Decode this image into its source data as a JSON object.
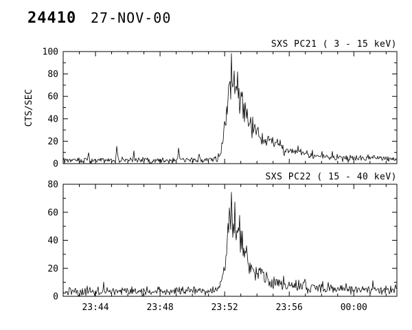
{
  "header": {
    "burst_number": "24410",
    "date": "27-NOV-00"
  },
  "chart_data": [
    {
      "type": "line",
      "title": "SXS PC21 (  3 - 15 keV)",
      "xlabel": "",
      "ylabel": "CTS/SEC",
      "ylim": [
        0,
        100
      ],
      "yticks": [
        0,
        20,
        40,
        60,
        80,
        100
      ],
      "y_minor_step": 10,
      "x_domain_sec_from_2342": [
        0,
        1240
      ],
      "xticks": [
        {
          "t": 120,
          "label": "23:44"
        },
        {
          "t": 360,
          "label": "23:48"
        },
        {
          "t": 600,
          "label": "23:52"
        },
        {
          "t": 840,
          "label": "23:56"
        },
        {
          "t": 1080,
          "label": "00:00"
        }
      ],
      "x_minor_step_sec": 60,
      "x_tick_labels_visible": false,
      "grid": false,
      "legend": "none",
      "baseline_cts": 3,
      "peak": {
        "t_sec": 625,
        "cts": 83,
        "time_label": "~23:52:25"
      },
      "series": [
        {
          "name": "PC21",
          "envelope_t_sec": [
            0,
            520,
            555,
            572,
            585,
            596,
            606,
            614,
            620,
            625,
            630,
            636,
            641,
            648,
            655,
            663,
            672,
            684,
            700,
            718,
            740,
            765,
            795,
            830,
            870,
            920,
            980,
            1050,
            1130,
            1240
          ],
          "envelope_cts": [
            3,
            3,
            3.5,
            5,
            10,
            22,
            42,
            62,
            74,
            83,
            70,
            74,
            64,
            68,
            56,
            59,
            49,
            43,
            36,
            30,
            25,
            20,
            16,
            13,
            10,
            8,
            6,
            5,
            4.5,
            4
          ],
          "spikes": [
            {
              "t": 95,
              "v": 10
            },
            {
              "t": 200,
              "v": 15.5
            },
            {
              "t": 262,
              "v": 11
            },
            {
              "t": 430,
              "v": 11
            },
            {
              "t": 505,
              "v": 10
            },
            {
              "t": 905,
              "v": 14
            },
            {
              "t": 1000,
              "v": 12
            }
          ],
          "noise": {
            "seed": 20211,
            "sigma_base": 1.0,
            "sigma_frac": 0.13
          }
        }
      ]
    },
    {
      "type": "line",
      "title": "SXS PC22 ( 15 - 40 keV)",
      "xlabel": "",
      "ylabel": "",
      "ylim": [
        0,
        80
      ],
      "yticks": [
        0,
        20,
        40,
        60,
        80
      ],
      "y_minor_step": 10,
      "x_domain_sec_from_2342": [
        0,
        1240
      ],
      "xticks": [
        {
          "t": 120,
          "label": "23:44"
        },
        {
          "t": 360,
          "label": "23:48"
        },
        {
          "t": 600,
          "label": "23:52"
        },
        {
          "t": 840,
          "label": "23:56"
        },
        {
          "t": 1080,
          "label": "00:00"
        }
      ],
      "x_minor_step_sec": 60,
      "x_tick_labels_visible": true,
      "grid": false,
      "legend": "none",
      "baseline_cts": 4,
      "peak": {
        "t_sec": 626,
        "cts": 62,
        "time_label": "~23:52:26"
      },
      "series": [
        {
          "name": "PC22",
          "envelope_t_sec": [
            0,
            520,
            558,
            575,
            588,
            598,
            607,
            614,
            620,
            626,
            632,
            638,
            644,
            652,
            660,
            670,
            682,
            696,
            714,
            736,
            762,
            792,
            828,
            870,
            920,
            980,
            1040,
            1120,
            1240
          ],
          "envelope_cts": [
            3.5,
            3.5,
            4,
            5,
            9,
            18,
            33,
            47,
            55,
            62,
            50,
            56,
            46,
            50,
            40,
            33,
            27,
            22,
            18,
            14.5,
            12,
            9.5,
            8,
            7,
            6.5,
            6,
            5.5,
            5,
            4.5
          ],
          "spikes": [
            {
              "t": 150,
              "v": 10
            },
            {
              "t": 310,
              "v": 9
            },
            {
              "t": 860,
              "v": 13
            },
            {
              "t": 900,
              "v": 15
            },
            {
              "t": 950,
              "v": 13
            },
            {
              "t": 1030,
              "v": 12
            },
            {
              "t": 1150,
              "v": 11
            }
          ],
          "noise": {
            "seed": 20222,
            "sigma_base": 1.1,
            "sigma_frac": 0.14
          }
        }
      ]
    }
  ],
  "colors": {
    "line": "#000000",
    "axis": "#000000",
    "background": "#ffffff"
  }
}
